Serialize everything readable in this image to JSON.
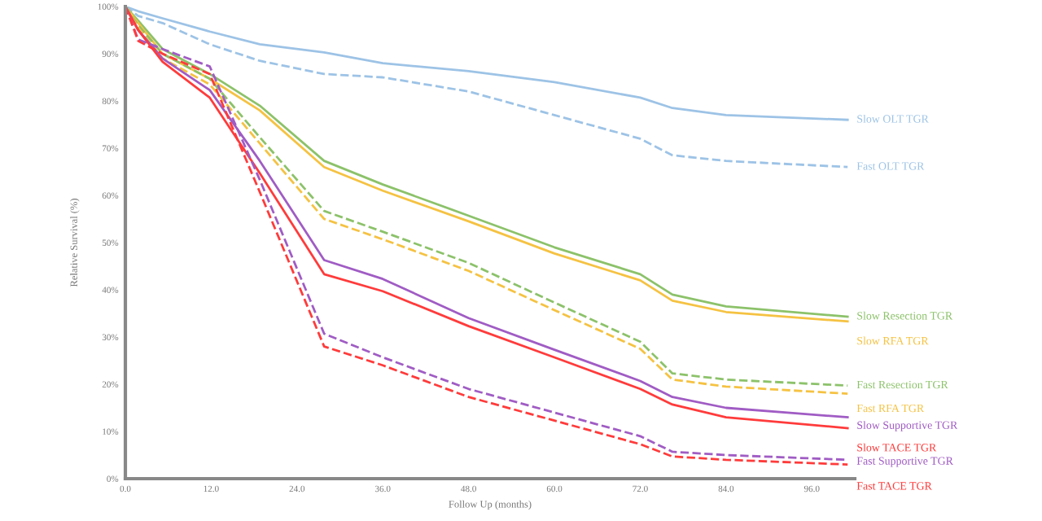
{
  "chart_data": {
    "type": "line",
    "xlabel": "Follow Up (months)",
    "ylabel": "Relative Survival (%)",
    "x": [
      0,
      1.8,
      5.2,
      11.8,
      18.8,
      27.8,
      36,
      48,
      60,
      72,
      76.5,
      84,
      101
    ],
    "xlim": [
      0,
      102
    ],
    "ylim": [
      0,
      100
    ],
    "xticks": [
      {
        "value": 0,
        "label": "0.0"
      },
      {
        "value": 12,
        "label": "12.0"
      },
      {
        "value": 24,
        "label": "24.0"
      },
      {
        "value": 36,
        "label": "36.0"
      },
      {
        "value": 48,
        "label": "48.0"
      },
      {
        "value": 60,
        "label": "60.0"
      },
      {
        "value": 72,
        "label": "72.0"
      },
      {
        "value": 84,
        "label": "84.0"
      },
      {
        "value": 96,
        "label": "96.0"
      }
    ],
    "yticks": [
      {
        "value": 0,
        "label": "0%"
      },
      {
        "value": 10,
        "label": "10%"
      },
      {
        "value": 20,
        "label": "20%"
      },
      {
        "value": 30,
        "label": "30%"
      },
      {
        "value": 40,
        "label": "40%"
      },
      {
        "value": 50,
        "label": "50%"
      },
      {
        "value": 60,
        "label": "60%"
      },
      {
        "value": 70,
        "label": "70%"
      },
      {
        "value": 80,
        "label": "80%"
      },
      {
        "value": 90,
        "label": "90%"
      },
      {
        "value": 100,
        "label": "100%"
      }
    ],
    "grid": false,
    "legend": false,
    "series": [
      {
        "name": "Slow OLT TGR",
        "color": "#9dc3e6",
        "line_style": "solid",
        "values": [
          100,
          99,
          97.5,
          94.7,
          92,
          90.3,
          88,
          86.3,
          84,
          80.7,
          78.5,
          77,
          76
        ]
      },
      {
        "name": "Fast OLT TGR",
        "color": "#9dc3e6",
        "line_style": "dashed",
        "values": [
          100,
          98,
          96.5,
          92,
          88.5,
          85.7,
          85,
          82,
          77,
          72,
          68.5,
          67.3,
          66
        ]
      },
      {
        "name": "Slow Resection TGR",
        "color": "#8cc26a",
        "line_style": "solid",
        "values": [
          100,
          97,
          91,
          85.7,
          79,
          67.3,
          62.3,
          55.7,
          49,
          43.3,
          39,
          36.5,
          34.3
        ]
      },
      {
        "name": "Slow RFA TGR",
        "color": "#f5c242",
        "line_style": "solid",
        "values": [
          100,
          96.5,
          90,
          84.7,
          78,
          66,
          61,
          54.5,
          47.7,
          42,
          37.7,
          35.3,
          33.3
        ]
      },
      {
        "name": "Fast Resection TGR",
        "color": "#8cc26a",
        "line_style": "dashed",
        "values": [
          100,
          96,
          90,
          84.7,
          72.3,
          56.7,
          52.3,
          45.7,
          37.3,
          29,
          22.3,
          21,
          19.7
        ]
      },
      {
        "name": "Fast RFA TGR",
        "color": "#f5c242",
        "line_style": "dashed",
        "values": [
          100,
          95.5,
          89,
          83.5,
          71,
          55,
          50.7,
          44,
          35.7,
          27.5,
          21,
          19.5,
          18
        ]
      },
      {
        "name": "Slow Supportive TGR",
        "color": "#a05cc4",
        "line_style": "solid",
        "values": [
          100,
          95,
          89,
          82.3,
          67.3,
          46.3,
          42.3,
          34,
          27.3,
          20.7,
          17.3,
          15,
          13
        ]
      },
      {
        "name": "Slow TACE TGR",
        "color": "#ff3b3b",
        "line_style": "solid",
        "values": [
          100,
          95,
          88.3,
          80.7,
          64.7,
          43.3,
          39.7,
          32.3,
          25.7,
          19,
          15.7,
          13,
          10.7
        ]
      },
      {
        "name": "Fast Supportive TGR",
        "color": "#a05cc4",
        "line_style": "dashed",
        "values": [
          100,
          93,
          91,
          87.3,
          63.3,
          30.7,
          25.7,
          19,
          14,
          9,
          5.7,
          5,
          4
        ]
      },
      {
        "name": "Fast TACE TGR",
        "color": "#ff3b3b",
        "line_style": "dashed",
        "values": [
          100,
          92.7,
          90,
          85.7,
          60.7,
          28,
          24,
          17.3,
          12.3,
          7.3,
          4.7,
          4,
          3
        ]
      }
    ]
  }
}
